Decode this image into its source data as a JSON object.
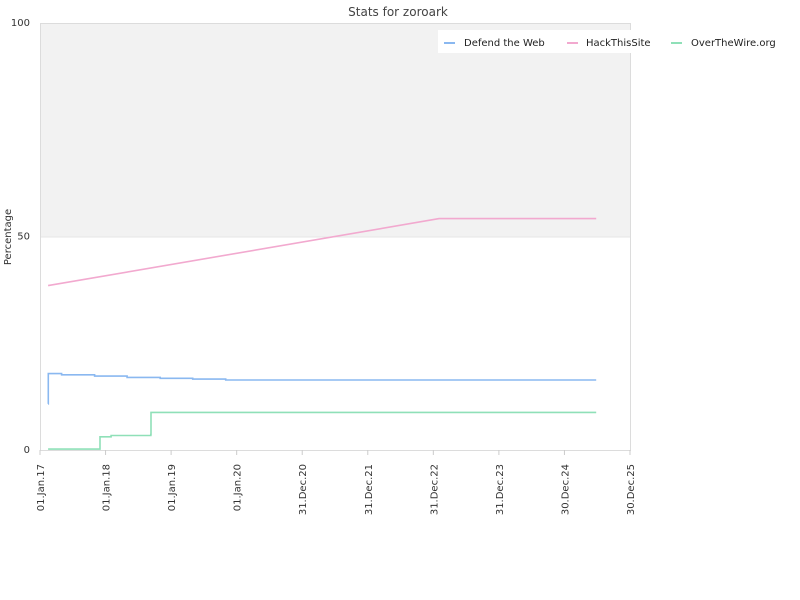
{
  "chart_data": {
    "type": "line",
    "title": "Stats for zoroark",
    "ylabel": "Percentage",
    "xlabel": "",
    "ylim": [
      0,
      100
    ],
    "yticks": [
      "0",
      "50",
      "100"
    ],
    "xlim": [
      "2017-01-01",
      "2025-12-30"
    ],
    "xticks": [
      {
        "date": "2017-01-01",
        "label": "01.Jan.17"
      },
      {
        "date": "2018-01-01",
        "label": "01.Jan.18"
      },
      {
        "date": "2019-01-01",
        "label": "01.Jan.19"
      },
      {
        "date": "2020-01-01",
        "label": "01.Jan.20"
      },
      {
        "date": "2020-12-31",
        "label": "31.Dec.20"
      },
      {
        "date": "2021-12-31",
        "label": "31.Dec.21"
      },
      {
        "date": "2022-12-31",
        "label": "31.Dec.22"
      },
      {
        "date": "2023-12-31",
        "label": "31.Dec.23"
      },
      {
        "date": "2024-12-30",
        "label": "30.Dec.24"
      },
      {
        "date": "2025-12-30",
        "label": "30.Dec.25"
      }
    ],
    "legend_position": "top-right",
    "shaded_band": {
      "from": 50,
      "to": 100,
      "color": "#f2f2f2"
    },
    "series": [
      {
        "name": "Defend the Web",
        "color": "#8ab8f0",
        "step": true,
        "points": [
          [
            "2017-02-15",
            10.8
          ],
          [
            "2017-02-16",
            17.9
          ],
          [
            "2017-05-01",
            17.6
          ],
          [
            "2017-11-01",
            17.3
          ],
          [
            "2018-05-01",
            17.0
          ],
          [
            "2018-11-01",
            16.8
          ],
          [
            "2019-05-01",
            16.6
          ],
          [
            "2019-11-01",
            16.4
          ],
          [
            "2025-06-25",
            16.4
          ]
        ]
      },
      {
        "name": "HackThisSite",
        "color": "#f2a9cf",
        "step": false,
        "points": [
          [
            "2017-02-15",
            38.5
          ],
          [
            "2023-02-01",
            54.2
          ],
          [
            "2025-06-25",
            54.2
          ]
        ]
      },
      {
        "name": "OverTheWire.org",
        "color": "#8fe0b8",
        "step": true,
        "points": [
          [
            "2017-02-15",
            0.2
          ],
          [
            "2017-12-01",
            3.1
          ],
          [
            "2018-02-01",
            3.4
          ],
          [
            "2018-09-10",
            3.6
          ],
          [
            "2018-09-11",
            8.8
          ],
          [
            "2025-06-25",
            8.8
          ]
        ]
      }
    ]
  }
}
